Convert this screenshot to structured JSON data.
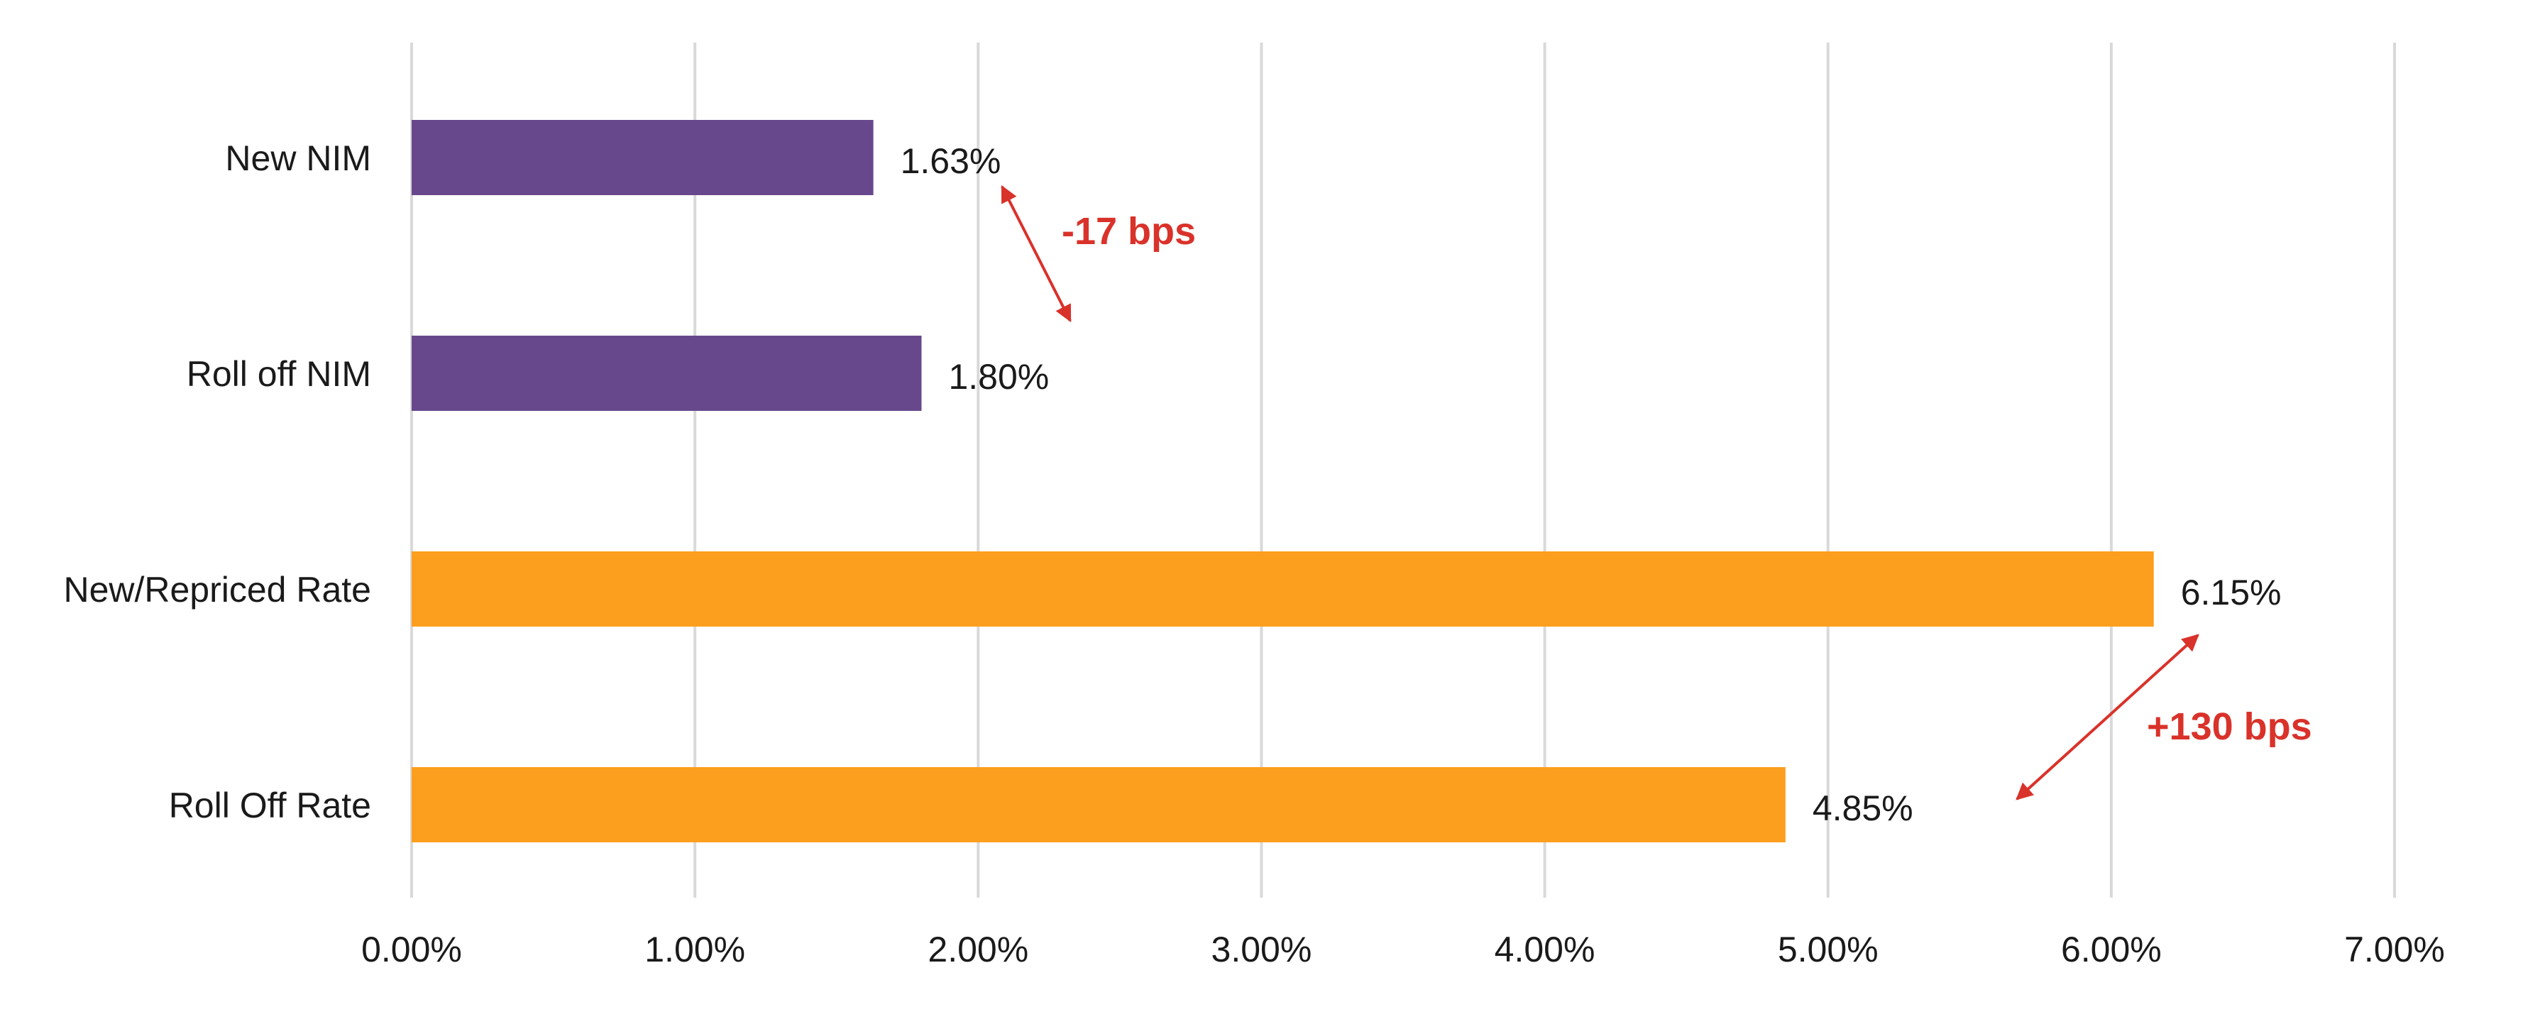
{
  "chart_data": {
    "type": "bar",
    "orientation": "horizontal",
    "categories": [
      "New NIM",
      "Roll off NIM",
      "New/Repriced Rate",
      "Roll Off Rate"
    ],
    "values": [
      1.63,
      1.8,
      6.15,
      4.85
    ],
    "value_labels": [
      "1.63%",
      "1.80%",
      "6.15%",
      "4.85%"
    ],
    "bar_colors": [
      "#68488c",
      "#68488c",
      "#fc9f1e",
      "#fc9f1e"
    ],
    "xlim": [
      0,
      7
    ],
    "xticks": [
      0,
      1,
      2,
      3,
      4,
      5,
      6,
      7
    ],
    "xtick_labels": [
      "0.00%",
      "1.00%",
      "2.00%",
      "3.00%",
      "4.00%",
      "5.00%",
      "6.00%",
      "7.00%"
    ],
    "grid": "vertical",
    "legend": "none",
    "title": "",
    "xlabel": "",
    "ylabel": "",
    "annotations": [
      {
        "text": "-17 bps",
        "between": [
          "New NIM",
          "Roll off NIM"
        ],
        "color": "#d9322a"
      },
      {
        "text": "+130 bps",
        "between": [
          "New/Repriced Rate",
          "Roll Off Rate"
        ],
        "color": "#d9322a"
      }
    ]
  }
}
